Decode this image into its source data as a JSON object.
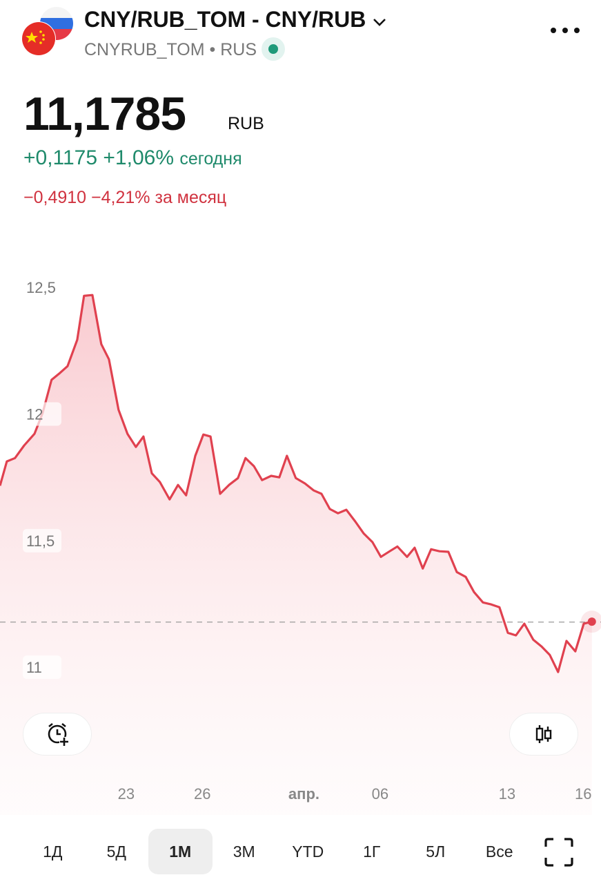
{
  "header": {
    "title": "CNY/RUB_TOM - CNY/RUB",
    "ticker": "CNYRUB_TOM",
    "exchange": "RUS"
  },
  "quote": {
    "price": "11,1785",
    "currency": "RUB",
    "day_change": "+0,1175",
    "day_change_pct": "+1,06%",
    "day_label": "сегодня",
    "month_change": "−0,4910",
    "month_change_pct": "−4,21%",
    "month_label": "за месяц"
  },
  "periods": [
    "1Д",
    "5Д",
    "1М",
    "3М",
    "YTD",
    "1Г",
    "5Л",
    "Все"
  ],
  "chart_data": {
    "type": "line",
    "color": "#e0414f",
    "reference_line": 11.1785,
    "x": [
      -4.97,
      -4.7,
      -4.38,
      -4.02,
      -3.61,
      -3.29,
      -2.94,
      -2.61,
      -2.31,
      -1.93,
      -1.66,
      -1.33,
      -0.98,
      -0.68,
      -0.3,
      0.05,
      0.38,
      0.68,
      1.01,
      1.33,
      1.71,
      2.04,
      2.36,
      2.72,
      3.04,
      3.32,
      3.7,
      4.05,
      4.4,
      4.7,
      5.03,
      5.35,
      5.71,
      6.03,
      6.33,
      6.68,
      7.04,
      7.39,
      7.69,
      8.02,
      8.34,
      8.67,
      9.02,
      9.35,
      9.7,
      10.03,
      10.38,
      10.68,
      11.06,
      11.36,
      11.68,
      12.01,
      12.34,
      12.69,
      13.02,
      13.37,
      13.7,
      14.05,
      14.38,
      14.7,
      15.03,
      15.35,
      15.68,
      16.03,
      16.36,
      16.68,
      17.01,
      17.34,
      17.69,
      18.02,
      18.34
    ],
    "values": [
      11.717,
      11.813,
      11.826,
      11.876,
      11.922,
      12.004,
      12.135,
      12.162,
      12.189,
      12.293,
      12.467,
      12.47,
      12.276,
      12.216,
      12.017,
      11.922,
      11.87,
      11.911,
      11.766,
      11.731,
      11.663,
      11.72,
      11.679,
      11.835,
      11.919,
      11.911,
      11.685,
      11.72,
      11.747,
      11.826,
      11.794,
      11.739,
      11.756,
      11.75,
      11.835,
      11.747,
      11.726,
      11.698,
      11.685,
      11.625,
      11.608,
      11.622,
      11.576,
      11.529,
      11.494,
      11.436,
      11.458,
      11.477,
      11.436,
      11.472,
      11.39,
      11.466,
      11.458,
      11.456,
      11.376,
      11.357,
      11.297,
      11.256,
      11.248,
      11.237,
      11.136,
      11.126,
      11.172,
      11.109,
      11.082,
      11.049,
      10.981,
      11.104,
      11.063,
      11.172,
      11.18
    ],
    "xlim": [
      -4.97,
      18.7
    ],
    "xticks": [
      {
        "value": 0,
        "label": "23"
      },
      {
        "value": 3,
        "label": "26"
      },
      {
        "value": 7,
        "label": "апр."
      },
      {
        "value": 10,
        "label": "06"
      },
      {
        "value": 15,
        "label": "13"
      },
      {
        "value": 18,
        "label": "16"
      }
    ],
    "ylim": [
      10.635,
      12.735
    ],
    "yticks": [
      {
        "value": 12.5,
        "label": "12,5"
      },
      12,
      {
        "value": 11.5,
        "label": "11,5"
      },
      11
    ]
  }
}
